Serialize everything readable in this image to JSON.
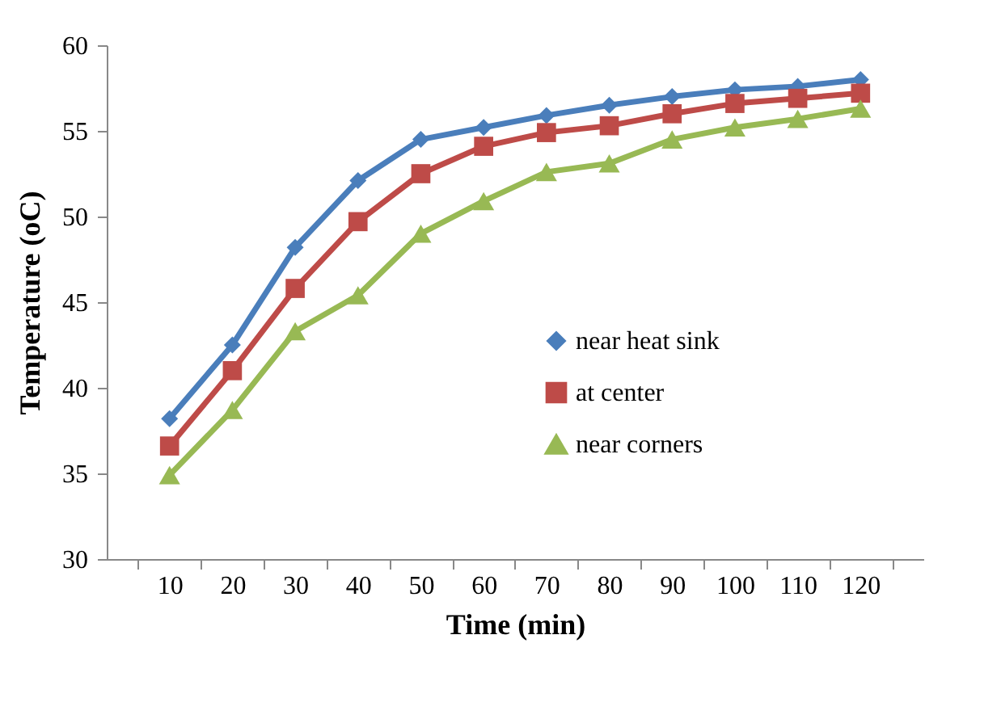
{
  "chart_data": {
    "type": "line",
    "xlabel": "Time (min)",
    "ylabel": "Temperature (oC)",
    "categories": [
      "10",
      "20",
      "30",
      "40",
      "50",
      "60",
      "70",
      "80",
      "90",
      "100",
      "110",
      "120"
    ],
    "series": [
      {
        "name": "near heat sink",
        "color": "#4a7ebb",
        "marker": "diamond",
        "values": [
          38.2,
          42.5,
          48.2,
          52.1,
          54.5,
          55.2,
          55.9,
          56.5,
          57.0,
          57.4,
          57.6,
          58.0
        ]
      },
      {
        "name": "at center",
        "color": "#be4b48",
        "marker": "square",
        "values": [
          36.6,
          41.0,
          45.8,
          49.7,
          52.5,
          54.1,
          54.9,
          55.3,
          56.0,
          56.6,
          56.9,
          57.2
        ]
      },
      {
        "name": "near corners",
        "color": "#98b954",
        "marker": "triangle",
        "values": [
          34.9,
          38.7,
          43.3,
          45.4,
          49.0,
          50.9,
          52.6,
          53.1,
          54.5,
          55.2,
          55.7,
          56.3
        ]
      }
    ],
    "ylim": [
      30,
      60
    ],
    "yticks": [
      30,
      35,
      40,
      45,
      50,
      55,
      60
    ],
    "grid": false,
    "legend": "right"
  }
}
